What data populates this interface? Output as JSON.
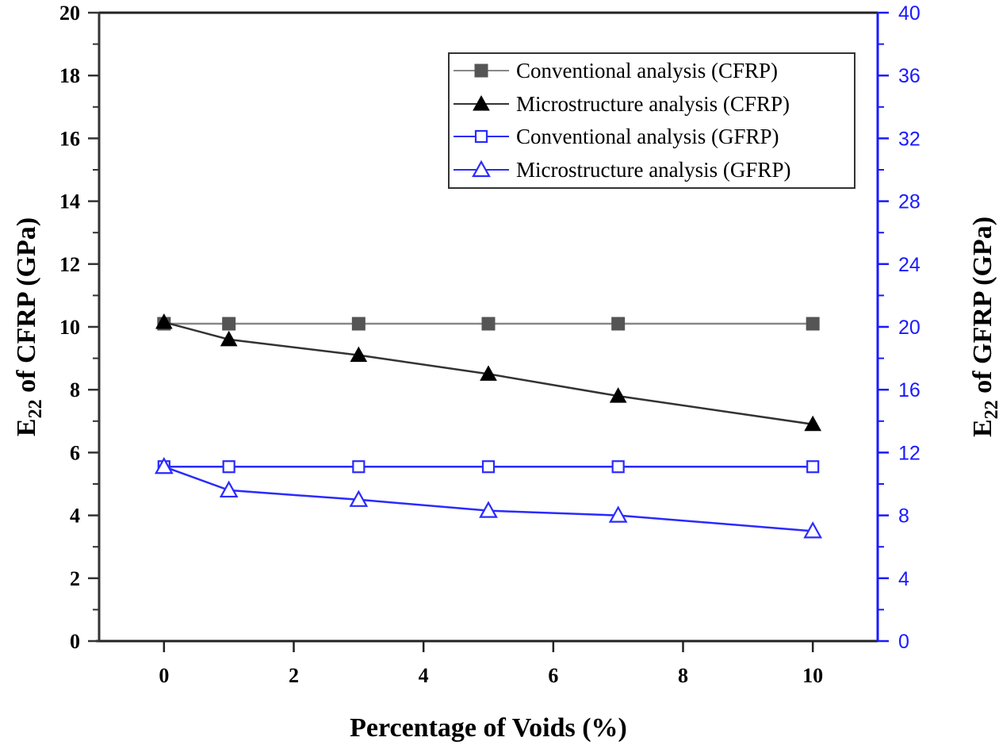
{
  "chart_data": {
    "type": "line",
    "title": "",
    "xlabel": "Percentage of Voids (%)",
    "ylabel_left": {
      "base": "E",
      "sub": "22",
      "rest": " of CFRP (GPa)"
    },
    "ylabel_right": {
      "base": "E",
      "sub": "22",
      "rest": " of GFRP (GPa)"
    },
    "xlim": [
      -1,
      11
    ],
    "ylim_left": [
      0,
      20
    ],
    "ylim_right": [
      0,
      40
    ],
    "x_ticks": [
      "0",
      "2",
      "4",
      "6",
      "8",
      "10"
    ],
    "y_ticks_left": [
      "0",
      "2",
      "4",
      "6",
      "8",
      "10",
      "12",
      "14",
      "16",
      "18",
      "20"
    ],
    "y_ticks_right": [
      "0",
      "4",
      "8",
      "12",
      "16",
      "20",
      "24",
      "28",
      "32",
      "36",
      "40"
    ],
    "grid": false,
    "legend_position": "top-right",
    "x": [
      0,
      1,
      3,
      5,
      7,
      10
    ],
    "series": [
      {
        "name": "Conventional analysis (CFRP)",
        "axis": "left",
        "marker": "filled-square",
        "color": "#555555",
        "line_color": "#888888",
        "values": [
          10.1,
          10.1,
          10.1,
          10.1,
          10.1,
          10.1
        ]
      },
      {
        "name": "Microstructure analysis (CFRP)",
        "axis": "left",
        "marker": "filled-triangle",
        "color": "#000000",
        "line_color": "#333333",
        "values": [
          10.15,
          9.6,
          9.1,
          8.5,
          7.8,
          6.9
        ]
      },
      {
        "name": "Conventional analysis (GFRP)",
        "axis": "right",
        "marker": "open-square",
        "color": "#2a2aff",
        "line_color": "#2a2aff",
        "values": [
          11.1,
          11.1,
          11.1,
          11.1,
          11.1,
          11.1
        ]
      },
      {
        "name": "Microstructure analysis (GFRP)",
        "axis": "right",
        "marker": "open-triangle",
        "color": "#2a2aff",
        "line_color": "#2a2aff",
        "values": [
          11.1,
          9.6,
          9.0,
          8.3,
          8.0,
          7.0
        ]
      }
    ]
  },
  "colors": {
    "right_axis": "#1a1aff",
    "left_axis": "#333333"
  }
}
